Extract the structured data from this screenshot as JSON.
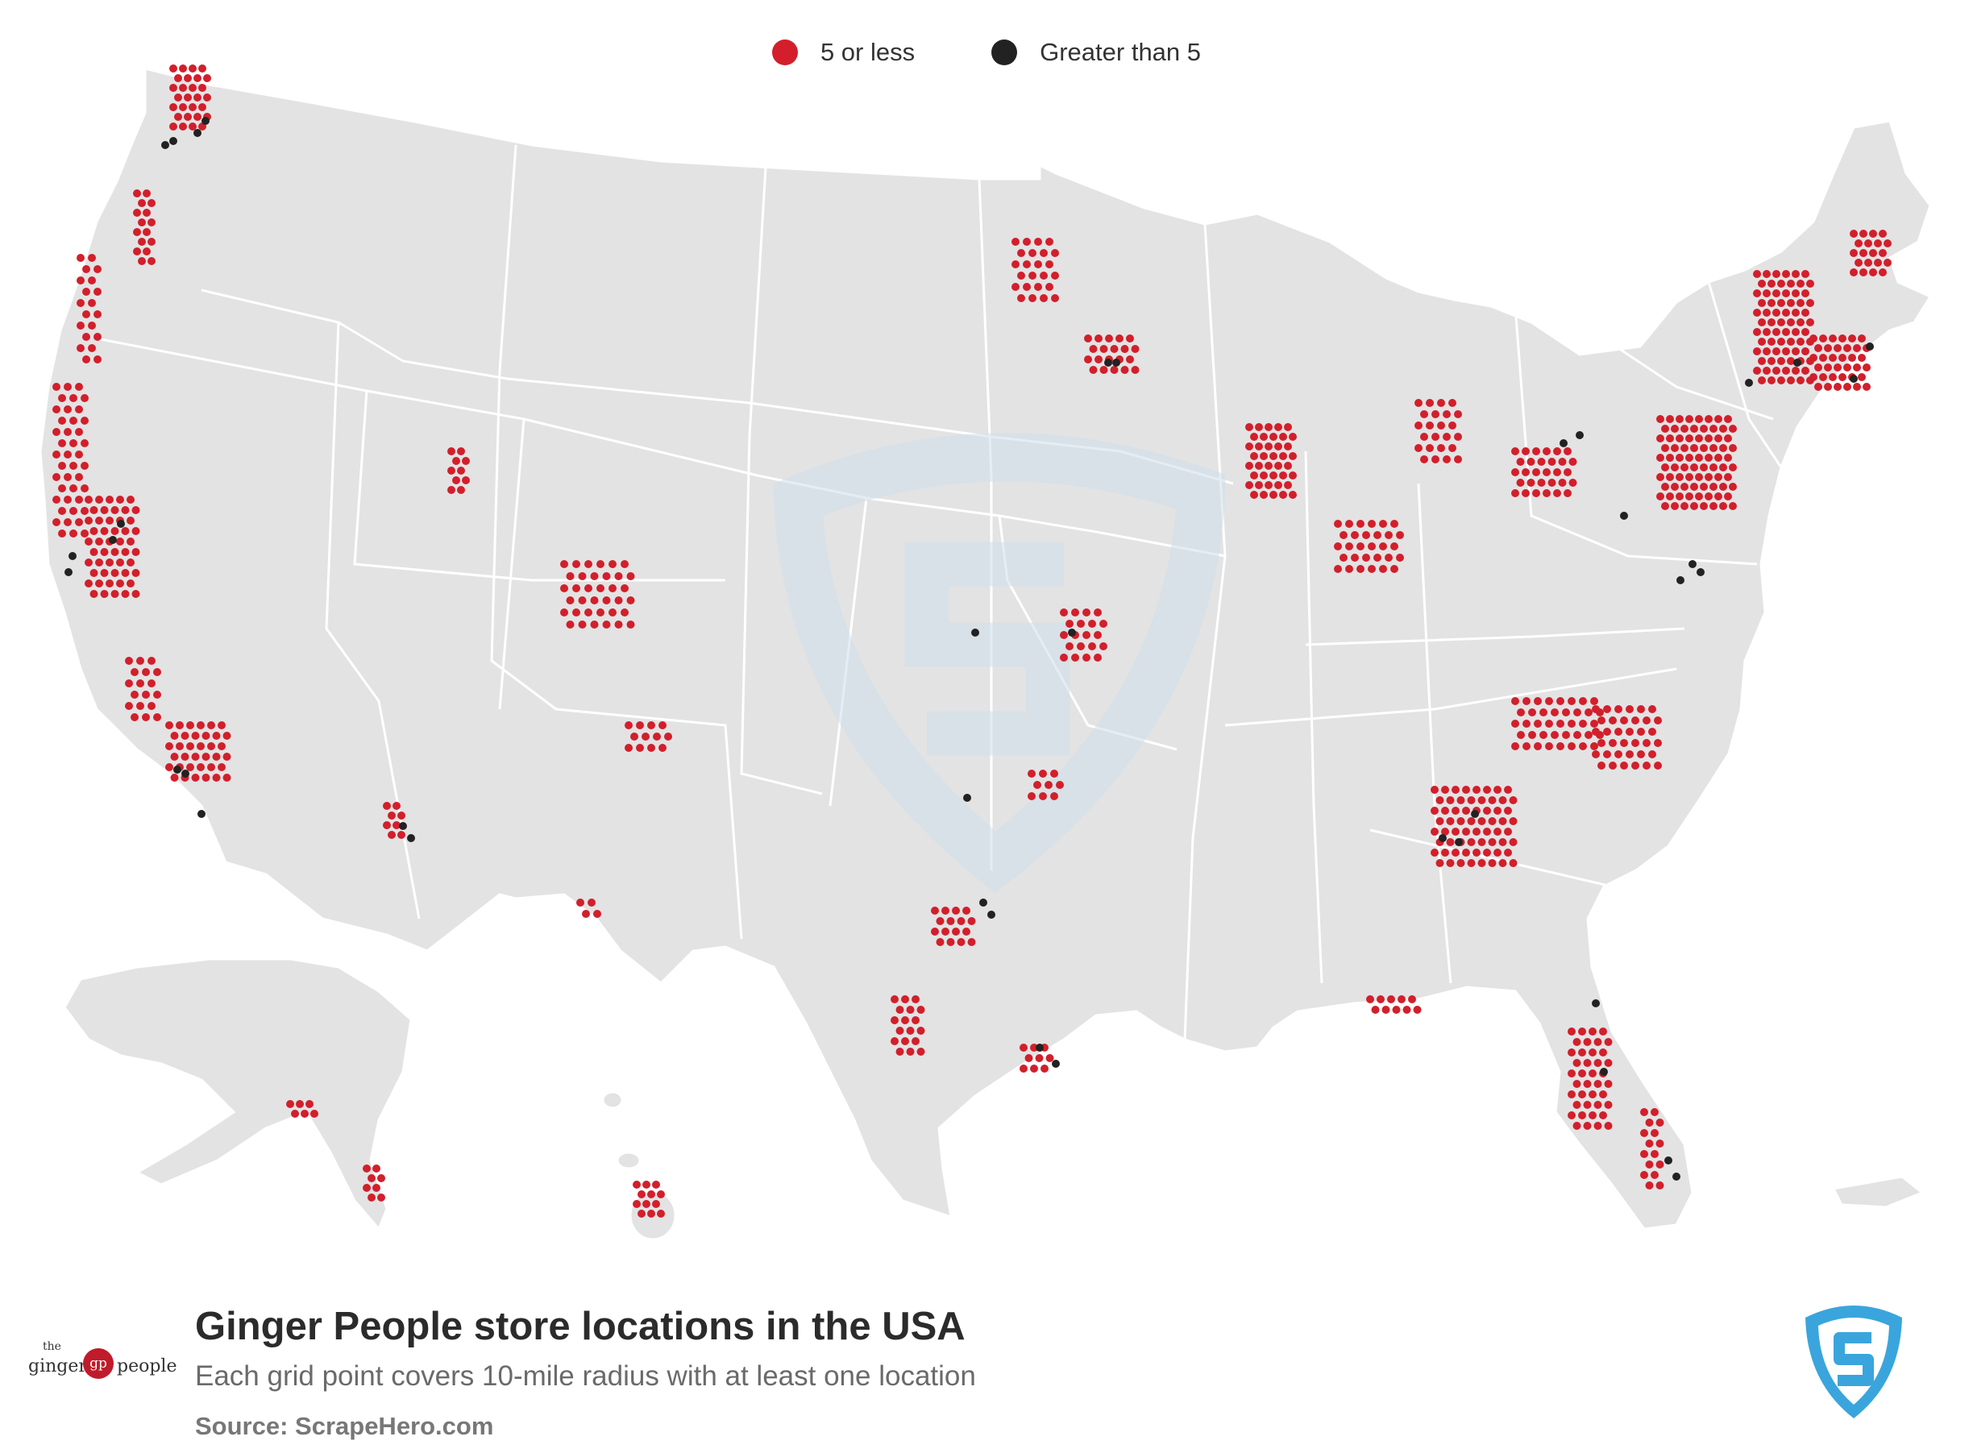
{
  "legend": [
    {
      "label": "5 or less",
      "color": "#d21f2b"
    },
    {
      "label": "Greater than 5",
      "color": "#222222"
    }
  ],
  "title": "Ginger People store locations in the USA",
  "subtitle": "Each grid point covers 10-mile radius with at least one location",
  "source": "Source: ScrapeHero.com",
  "brand": {
    "top_text": "the",
    "name_left": "ginger",
    "monogram": "gp",
    "name_right": "people"
  },
  "colors": {
    "land": "#e3e3e3",
    "border": "#ffffff",
    "watermark": "#cfe0ec",
    "scrapehero_blue": "#3aa5dc"
  },
  "icons": [
    "scrapehero-shield-icon",
    "ginger-people-logo-icon"
  ]
}
